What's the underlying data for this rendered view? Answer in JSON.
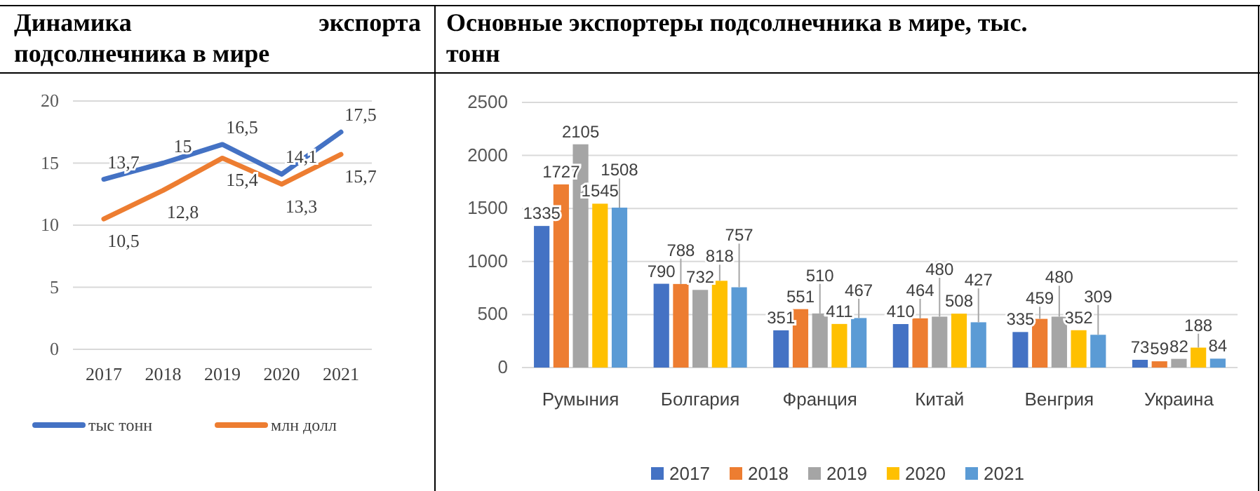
{
  "chart_data": [
    {
      "type": "line",
      "title": "Динамика экспорта подсолнечника в мире",
      "categories": [
        "2017",
        "2018",
        "2019",
        "2020",
        "2021"
      ],
      "series": [
        {
          "name": "тыс тонн",
          "color": "#4472c4",
          "values": [
            13.7,
            15,
            16.5,
            14.1,
            17.5
          ],
          "value_labels": [
            "13,7",
            "15",
            "16,5",
            "14,1",
            "17,5"
          ]
        },
        {
          "name": "млн долл",
          "color": "#ed7d31",
          "values": [
            10.5,
            12.8,
            15.4,
            13.3,
            15.7
          ],
          "value_labels": [
            "10,5",
            "12,8",
            "15,4",
            "13,3",
            "15,7"
          ]
        }
      ],
      "ylim": [
        0,
        20
      ],
      "yticks": [
        0,
        5,
        10,
        15,
        20
      ],
      "grid": "y",
      "legend": "bottom"
    },
    {
      "type": "bar",
      "title": "Основные экспортеры подсолнечника в мире, тыс. тонн",
      "categories": [
        "Румыния",
        "Болгария",
        "Франция",
        "Китай",
        "Венгрия",
        "Украина"
      ],
      "series": [
        {
          "name": "2017",
          "color": "#4472c4",
          "values": [
            1335,
            790,
            351,
            410,
            335,
            73
          ]
        },
        {
          "name": "2018",
          "color": "#ed7d31",
          "values": [
            1727,
            788,
            551,
            464,
            459,
            59
          ]
        },
        {
          "name": "2019",
          "color": "#a5a5a5",
          "values": [
            2105,
            732,
            510,
            480,
            480,
            82
          ]
        },
        {
          "name": "2020",
          "color": "#ffc000",
          "values": [
            1545,
            818,
            411,
            508,
            352,
            188
          ]
        },
        {
          "name": "2021",
          "color": "#5b9bd5",
          "values": [
            1508,
            757,
            467,
            427,
            309,
            84
          ]
        }
      ],
      "ylim": [
        0,
        2500
      ],
      "yticks": [
        0,
        500,
        1000,
        1500,
        2000,
        2500
      ],
      "grid": "y",
      "legend": "bottom",
      "data_labels": true
    }
  ]
}
